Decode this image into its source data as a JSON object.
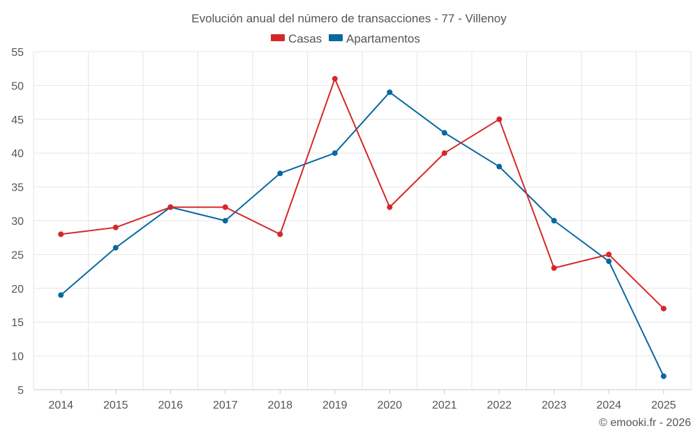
{
  "colors": {
    "casas": "#d62728",
    "apartamentos": "#0868a0",
    "grid": "#e6e6e6",
    "axis": "#c8c8c8",
    "text": "#555555"
  },
  "credit": "© emooki.fr - 2026",
  "chart_data": {
    "type": "line",
    "title": "Evolución anual del número de transacciones - 77 - Villenoy",
    "xlabel": "",
    "ylabel": "",
    "x": [
      "2014",
      "2015",
      "2016",
      "2017",
      "2018",
      "2019",
      "2020",
      "2021",
      "2022",
      "2023",
      "2024",
      "2025"
    ],
    "ylim": [
      5,
      55
    ],
    "yticks": [
      5,
      10,
      15,
      20,
      25,
      30,
      35,
      40,
      45,
      50,
      55
    ],
    "grid": true,
    "legend_position": "top-center",
    "series": [
      {
        "key": "casas",
        "name": "Casas",
        "color": "#d62728",
        "values": [
          28,
          29,
          32,
          32,
          28,
          51,
          32,
          40,
          45,
          23,
          25,
          17
        ]
      },
      {
        "key": "apartamentos",
        "name": "Apartamentos",
        "color": "#0868a0",
        "values": [
          19,
          26,
          32,
          30,
          37,
          40,
          49,
          43,
          38,
          30,
          24,
          7
        ]
      }
    ]
  }
}
